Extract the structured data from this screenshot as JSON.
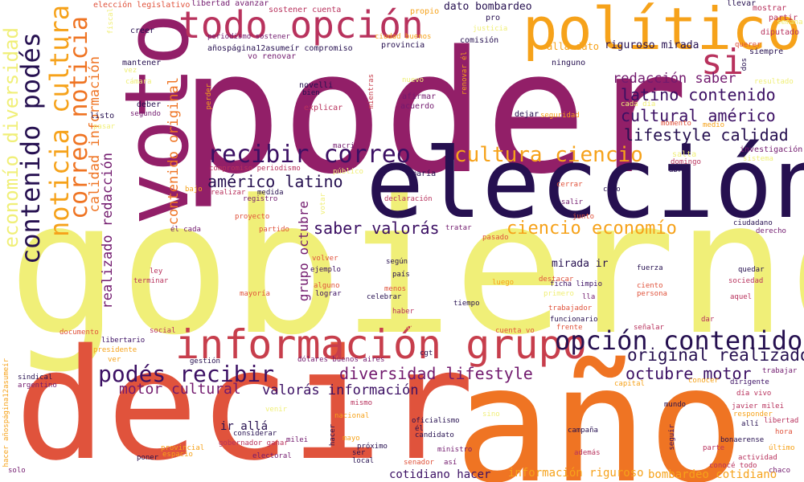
{
  "words": [
    {
      "text": "poder",
      "color": "#921F68"
    },
    {
      "text": "gobierno",
      "color": "#F0EF78"
    },
    {
      "text": "decir",
      "color": "#E0533C"
    },
    {
      "text": "año",
      "color": "#EF7423"
    },
    {
      "text": "elección",
      "color": "#261050"
    },
    {
      "text": "voto",
      "color": "#921F68"
    },
    {
      "text": "político",
      "color": "#F6A21A"
    },
    {
      "text": "todo opción",
      "color": "#B8325D"
    },
    {
      "text": "si",
      "color": "#B8325D"
    },
    {
      "text": "información grupo",
      "color": "#C73E4C"
    },
    {
      "text": "opción contenido",
      "color": "#261050"
    },
    {
      "text": "original realizado",
      "color": "#261050"
    },
    {
      "text": "contenido podés",
      "color": "#261050"
    },
    {
      "text": "noticia cultura",
      "color": "#F6A21A"
    },
    {
      "text": "correo noticia",
      "color": "#EF7423"
    },
    {
      "text": "economío diversidad",
      "color": "#F0EF78"
    },
    {
      "text": "recibir correo",
      "color": "#3B0F63"
    },
    {
      "text": "cultura ciencio",
      "color": "#F6A21A"
    },
    {
      "text": "podés recibir",
      "color": "#3B0F63"
    },
    {
      "text": "diversidad lifestyle",
      "color": "#721A6E"
    },
    {
      "text": "octubre motor",
      "color": "#3B0F63"
    },
    {
      "text": "ciencio economío",
      "color": "#F6A21A"
    },
    {
      "text": "américo latino",
      "color": "#261050"
    },
    {
      "text": "saber valorás",
      "color": "#3B0F63"
    },
    {
      "text": "redacción saber",
      "color": "#721A6E"
    },
    {
      "text": "latino contenido",
      "color": "#3B0F63"
    },
    {
      "text": "cultural américo",
      "color": "#3B0F63"
    },
    {
      "text": "lifestyle calidad",
      "color": "#261050"
    },
    {
      "text": "motor cultural",
      "color": "#721A6E"
    },
    {
      "text": "valorás información",
      "color": "#3B0F63"
    },
    {
      "text": "calidad información",
      "color": "#EF7423"
    },
    {
      "text": "realizado redacción",
      "color": "#721A6E"
    },
    {
      "text": "contenido original",
      "color": "#EF7423"
    },
    {
      "text": "grupo octubre",
      "color": "#721A6E"
    },
    {
      "text": "mirada ir",
      "color": "#261050"
    },
    {
      "text": "ir allá",
      "color": "#261050"
    },
    {
      "text": "cotidiano hacer",
      "color": "#3B0F63"
    },
    {
      "text": "información riguroso",
      "color": "#F6A21A"
    },
    {
      "text": "bombardeo cotidiano",
      "color": "#F6A21A"
    },
    {
      "text": "riguroso mirada",
      "color": "#261050"
    },
    {
      "text": "dato bombardeo",
      "color": "#261050"
    },
    {
      "text": "allá dato",
      "color": "#F6A21A"
    },
    {
      "text": "elección legislativo",
      "color": "#E0533C"
    },
    {
      "text": "libertad avanzar",
      "color": "#721A6E"
    },
    {
      "text": "sostener cuenta",
      "color": "#B8325D"
    },
    {
      "text": "propio",
      "color": "#F6A21A"
    },
    {
      "text": "llevar",
      "color": "#261050"
    },
    {
      "text": "mostrar",
      "color": "#B8325D"
    },
    {
      "text": "partir",
      "color": "#B8325D"
    },
    {
      "text": "semana",
      "color": "#F0EF78"
    },
    {
      "text": "diputado",
      "color": "#B8325D"
    },
    {
      "text": "siempre",
      "color": "#261050"
    },
    {
      "text": "querer",
      "color": "#E0533C"
    },
    {
      "text": "dos",
      "color": "#261050"
    },
    {
      "text": "resultado",
      "color": "#F0EF78"
    },
    {
      "text": "pro",
      "color": "#261050"
    },
    {
      "text": "justicia",
      "color": "#F0EF78"
    },
    {
      "text": "comisión",
      "color": "#261050"
    },
    {
      "text": "provincia",
      "color": "#261050"
    },
    {
      "text": "ciudad buenos",
      "color": "#F6A21A"
    },
    {
      "text": "creer",
      "color": "#261050"
    },
    {
      "text": "periodismo sostener",
      "color": "#721A6E"
    },
    {
      "text": "añospágina12asumeír compromiso",
      "color": "#261050"
    },
    {
      "text": "vo renovar",
      "color": "#721A6E"
    },
    {
      "text": "fiscal",
      "color": "#F0EF78"
    },
    {
      "text": "mantener",
      "color": "#261050"
    },
    {
      "text": "vez",
      "color": "#F0EF78"
    },
    {
      "text": "cámara",
      "color": "#F0EF78"
    },
    {
      "text": "deber",
      "color": "#261050"
    },
    {
      "text": "segundo",
      "color": "#721A6E"
    },
    {
      "text": "listo",
      "color": "#261050"
    },
    {
      "text": "pasar",
      "color": "#F0EF78"
    },
    {
      "text": "perder",
      "color": "#F6A21A"
    },
    {
      "text": "novelli",
      "color": "#261050"
    },
    {
      "text": "bien",
      "color": "#261050"
    },
    {
      "text": "explicar",
      "color": "#B8325D"
    },
    {
      "text": "mientras",
      "color": "#C73E4C"
    },
    {
      "text": "nuevo",
      "color": "#F0EF78"
    },
    {
      "text": "afirmar",
      "color": "#721A6E"
    },
    {
      "text": "acuerdo",
      "color": "#721A6E"
    },
    {
      "text": "renovar él",
      "color": "#F6A21A"
    },
    {
      "text": "ninguno",
      "color": "#261050"
    },
    {
      "text": "cada día",
      "color": "#F0EF78"
    },
    {
      "text": "dejar",
      "color": "#261050"
    },
    {
      "text": "seguridad",
      "color": "#F6A21A"
    },
    {
      "text": "momento",
      "color": "#E0533C"
    },
    {
      "text": "medio",
      "color": "#F6A21A"
    },
    {
      "text": "investigación",
      "color": "#721A6E"
    },
    {
      "text": "salta",
      "color": "#F0EF78"
    },
    {
      "text": "domingo",
      "color": "#B8325D"
    },
    {
      "text": "sistema",
      "color": "#F0EF78"
    },
    {
      "text": "abril",
      "color": "#261050"
    },
    {
      "text": "macri",
      "color": "#721A6E"
    },
    {
      "text": "compromiso periodismo",
      "color": "#B8325D"
    },
    {
      "text": "público",
      "color": "#F0EF78"
    },
    {
      "text": "maría",
      "color": "#261050"
    },
    {
      "text": "bajo",
      "color": "#F6A21A"
    },
    {
      "text": "realizar",
      "color": "#B8325D"
    },
    {
      "text": "medida",
      "color": "#261050"
    },
    {
      "text": "registro",
      "color": "#721A6E"
    },
    {
      "text": "votar",
      "color": "#F0EF78"
    },
    {
      "text": "declaración",
      "color": "#B8325D"
    },
    {
      "text": "cerrar",
      "color": "#E0533C"
    },
    {
      "text": "caso",
      "color": "#261050"
    },
    {
      "text": "salir",
      "color": "#721A6E"
    },
    {
      "text": "junto",
      "color": "#E0533C"
    },
    {
      "text": "ciudadano",
      "color": "#261050"
    },
    {
      "text": "derecho",
      "color": "#721A6E"
    },
    {
      "text": "proyecto",
      "color": "#E0533C"
    },
    {
      "text": "él cada",
      "color": "#721A6E"
    },
    {
      "text": "partido",
      "color": "#E0533C"
    },
    {
      "text": "tratar",
      "color": "#721A6E"
    },
    {
      "text": "pasado",
      "color": "#E0533C"
    },
    {
      "text": "volver",
      "color": "#E0533C"
    },
    {
      "text": "según",
      "color": "#261050"
    },
    {
      "text": "ejemplo",
      "color": "#3B0F63"
    },
    {
      "text": "país",
      "color": "#261050"
    },
    {
      "text": "ley",
      "color": "#B8325D"
    },
    {
      "text": "terminar",
      "color": "#B8325D"
    },
    {
      "text": "alguno",
      "color": "#E0533C"
    },
    {
      "text": "lograr",
      "color": "#3B0F63"
    },
    {
      "text": "menos",
      "color": "#E0533C"
    },
    {
      "text": "celebrar",
      "color": "#261050"
    },
    {
      "text": "luego",
      "color": "#F6A21A"
    },
    {
      "text": "destacar",
      "color": "#E0533C"
    },
    {
      "text": "ficha limpio",
      "color": "#3B0F63"
    },
    {
      "text": "primero",
      "color": "#F0EF78"
    },
    {
      "text": "lla",
      "color": "#721A6E"
    },
    {
      "text": "ciento",
      "color": "#E0533C"
    },
    {
      "text": "persona",
      "color": "#E0533C"
    },
    {
      "text": "fuerza",
      "color": "#261050"
    },
    {
      "text": "quedar",
      "color": "#261050"
    },
    {
      "text": "sociedad",
      "color": "#B8325D"
    },
    {
      "text": "aquel",
      "color": "#B8325D"
    },
    {
      "text": "mayoría",
      "color": "#E0533C"
    },
    {
      "text": "haber",
      "color": "#B8325D"
    },
    {
      "text": "tiempo",
      "color": "#261050"
    },
    {
      "text": "trabajador",
      "color": "#E0533C"
    },
    {
      "text": "funcionario",
      "color": "#261050"
    },
    {
      "text": "frente",
      "color": "#E0533C"
    },
    {
      "text": "dar",
      "color": "#B8325D"
    },
    {
      "text": "señalar",
      "color": "#B8325D"
    },
    {
      "text": "documento",
      "color": "#E0533C"
    },
    {
      "text": "social",
      "color": "#B8325D"
    },
    {
      "text": "asegurar",
      "color": "#F0EF78"
    },
    {
      "text": "cuenta vo",
      "color": "#E0533C"
    },
    {
      "text": "libertario",
      "color": "#3B0F63"
    },
    {
      "text": "presidente",
      "color": "#F6A21A"
    },
    {
      "text": "ver",
      "color": "#F6A21A"
    },
    {
      "text": "gestión",
      "color": "#261050"
    },
    {
      "text": "dólares buenos aires",
      "color": "#721A6E"
    },
    {
      "text": "cgt",
      "color": "#261050"
    },
    {
      "text": "sindical",
      "color": "#261050"
    },
    {
      "text": "argentino",
      "color": "#721A6E"
    },
    {
      "text": "trabajar",
      "color": "#721A6E"
    },
    {
      "text": "conocer",
      "color": "#F6A21A"
    },
    {
      "text": "capital",
      "color": "#F6A21A"
    },
    {
      "text": "dirigente",
      "color": "#3B0F63"
    },
    {
      "text": "día vivo",
      "color": "#B8325D"
    },
    {
      "text": "javier milei",
      "color": "#B8325D"
    },
    {
      "text": "responder",
      "color": "#F6A21A"
    },
    {
      "text": "hacer añospágina12asumeír",
      "color": "#F6A21A"
    },
    {
      "text": "mismo",
      "color": "#B8325D"
    },
    {
      "text": "venir",
      "color": "#F0EF78"
    },
    {
      "text": "nacional",
      "color": "#F6A21A"
    },
    {
      "text": "sino",
      "color": "#F0EF78"
    },
    {
      "text": "mundo",
      "color": "#261050"
    },
    {
      "text": "allí",
      "color": "#261050"
    },
    {
      "text": "libertad",
      "color": "#B8325D"
    },
    {
      "text": "hora",
      "color": "#E0533C"
    },
    {
      "text": "último",
      "color": "#F6A21A"
    },
    {
      "text": "bonaerense",
      "color": "#261050"
    },
    {
      "text": "parte",
      "color": "#B8325D"
    },
    {
      "text": "actividad",
      "color": "#B8325D"
    },
    {
      "text": "conocé todo",
      "color": "#B8325D"
    },
    {
      "text": "chaco",
      "color": "#721A6E"
    },
    {
      "text": "considerar",
      "color": "#261050"
    },
    {
      "text": "gobernador ganar",
      "color": "#B8325D"
    },
    {
      "text": "milei",
      "color": "#721A6E"
    },
    {
      "text": "mayo",
      "color": "#F6A21A"
    },
    {
      "text": "hacer",
      "color": "#261050"
    },
    {
      "text": "oficialismo",
      "color": "#261050"
    },
    {
      "text": "él",
      "color": "#261050"
    },
    {
      "text": "candidato",
      "color": "#261050"
    },
    {
      "text": "campaña",
      "color": "#261050"
    },
    {
      "text": "además",
      "color": "#B8325D"
    },
    {
      "text": "seguir",
      "color": "#3B0F63"
    },
    {
      "text": "provincial",
      "color": "#F6A21A"
    },
    {
      "text": "espacio",
      "color": "#F6A21A"
    },
    {
      "text": "poner",
      "color": "#261050"
    },
    {
      "text": "electoral",
      "color": "#721A6E"
    },
    {
      "text": "ser",
      "color": "#261050"
    },
    {
      "text": "local",
      "color": "#261050"
    },
    {
      "text": "próximo",
      "color": "#261050"
    },
    {
      "text": "ministro",
      "color": "#721A6E"
    },
    {
      "text": "senador",
      "color": "#E0533C"
    },
    {
      "text": "así",
      "color": "#721A6E"
    },
    {
      "text": "solo",
      "color": "#721A6E"
    }
  ]
}
